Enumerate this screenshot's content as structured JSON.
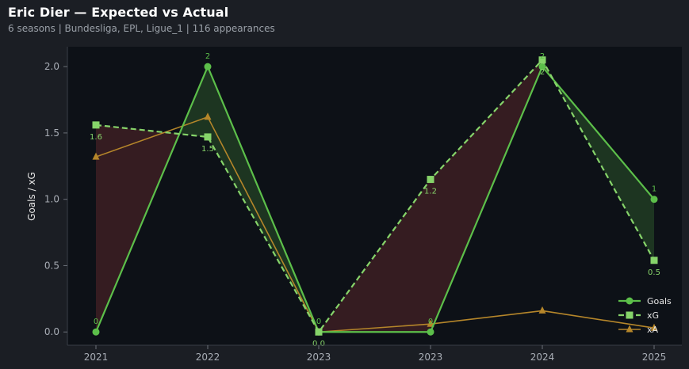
{
  "header": {
    "title": "Eric Dier — Expected vs Actual",
    "subtitle": "6 seasons | Bundesliga, EPL, Ligue_1 | 116 appearances"
  },
  "colors": {
    "goals": "#5cbf4a",
    "xg": "#86d46a",
    "xa": "#b5862a",
    "over_fill": "#1f3a22",
    "under_fill": "#3a1e22",
    "background": "#0d1117",
    "page": "#1b1e24",
    "axis": "#3a3f47"
  },
  "chart_data": {
    "type": "line",
    "title": "Eric Dier — Expected vs Actual",
    "xlabel": "",
    "ylabel": "Goals / xG",
    "categories": [
      "2021",
      "2022",
      "2023",
      "2023",
      "2024",
      "2025"
    ],
    "ylim": [
      -0.1,
      2.15
    ],
    "yticks": [
      0.0,
      0.5,
      1.0,
      1.5,
      2.0
    ],
    "ytick_labels": [
      "0.0",
      "0.5",
      "1.0",
      "1.5",
      "2.0"
    ],
    "grid": false,
    "legend_position": "lower-right",
    "series": [
      {
        "name": "Goals",
        "key": "goals",
        "marker": "circle",
        "style": "solid",
        "values": [
          0,
          2,
          0,
          0,
          2,
          1
        ],
        "labels": [
          "0",
          "2",
          "0",
          "0",
          "2",
          "1"
        ]
      },
      {
        "name": "xG",
        "key": "xg",
        "marker": "square",
        "style": "dashed",
        "values": [
          1.56,
          1.47,
          0.0,
          1.15,
          2.05,
          0.54
        ],
        "labels": [
          "1.6",
          "1.5",
          "0.0",
          "1.2",
          "2",
          "0.5"
        ]
      },
      {
        "name": "xA",
        "key": "xa",
        "marker": "triangle",
        "style": "solid",
        "values": [
          1.32,
          1.62,
          0.0,
          0.06,
          0.16,
          0.03
        ]
      }
    ]
  }
}
